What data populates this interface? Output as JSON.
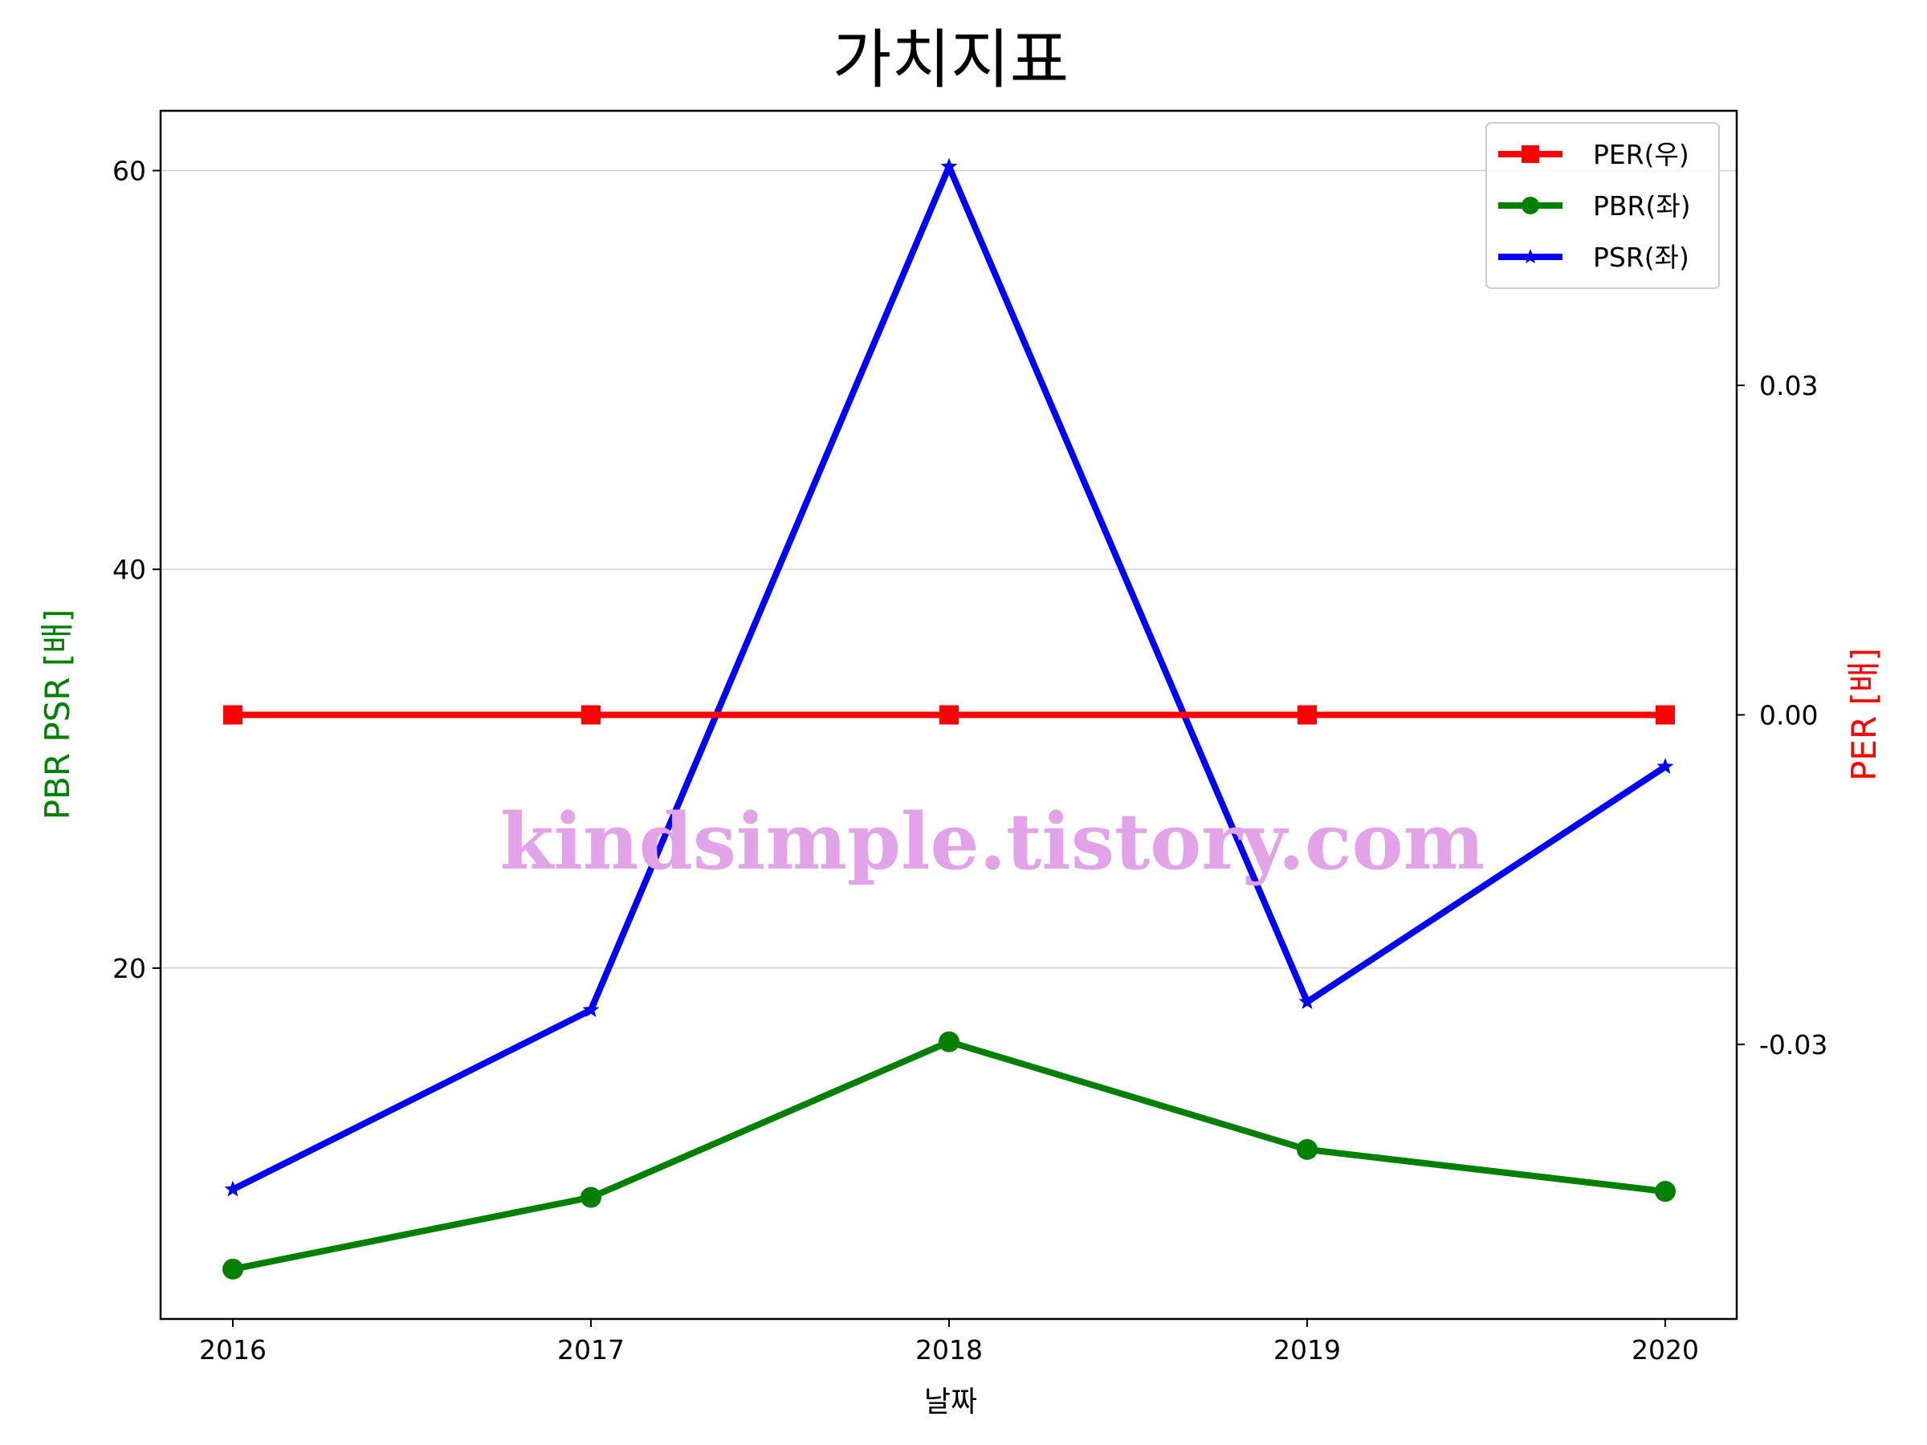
{
  "chart_data": {
    "type": "line",
    "title": "가치지표",
    "xlabel": "날짜",
    "ylabel_left": "PBR PSR [배]",
    "ylabel_right": "PER [배]",
    "categories": [
      "2016",
      "2017",
      "2018",
      "2019",
      "2020"
    ],
    "left_axis": {
      "ylim": [
        2.4,
        63
      ],
      "ticks": [
        20,
        40,
        60
      ],
      "tick_labels": [
        "20",
        "40",
        "60"
      ],
      "color": "#008000"
    },
    "right_axis": {
      "ylim": [
        -0.055,
        0.055
      ],
      "ticks": [
        -0.03,
        0.0,
        0.03
      ],
      "tick_labels": [
        "-0.03",
        "0.00",
        "0.03"
      ],
      "color": "#ff0000"
    },
    "grid": "horizontal (left axis)",
    "legend_position": "top-right",
    "series": [
      {
        "name": "PER(우)",
        "axis": "right",
        "color": "#ff0000",
        "marker": "square",
        "values": [
          0,
          0,
          0,
          0,
          0
        ]
      },
      {
        "name": "PBR(좌)",
        "axis": "left",
        "color": "#008000",
        "marker": "circle",
        "values": [
          4.9,
          8.5,
          16.3,
          10.9,
          8.8
        ]
      },
      {
        "name": "PSR(좌)",
        "axis": "left",
        "color": "#0000ff",
        "marker": "star",
        "values": [
          8.9,
          17.9,
          60.2,
          18.3,
          30.1
        ]
      }
    ],
    "watermark": "kindsimple.tistory.com"
  }
}
